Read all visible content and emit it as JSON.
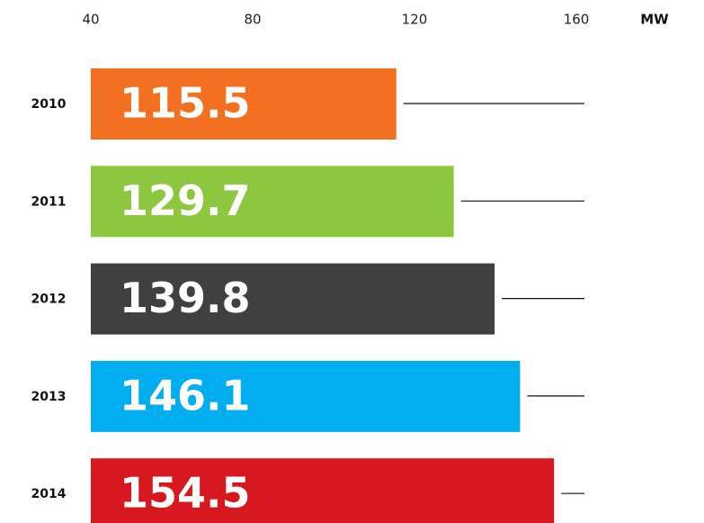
{
  "chart_data": {
    "type": "bar",
    "orientation": "horizontal",
    "x_unit": "MW",
    "categories": [
      "2010",
      "2011",
      "2012",
      "2013",
      "2014"
    ],
    "values": [
      115.5,
      129.7,
      139.8,
      146.1,
      154.5
    ],
    "colors": [
      "#f37021",
      "#8dc63f",
      "#404040",
      "#00aeef",
      "#d7191f"
    ],
    "xlim": [
      40,
      162
    ],
    "xticks": [
      40,
      80,
      120,
      160
    ]
  }
}
